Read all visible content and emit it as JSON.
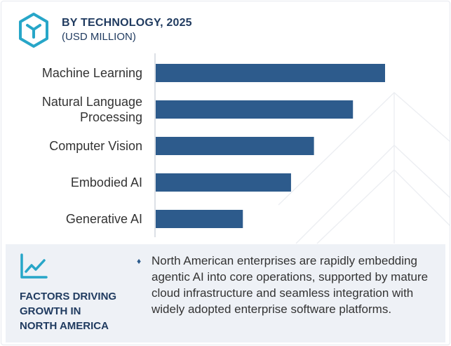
{
  "header": {
    "title": "BY TECHNOLOGY, 2025",
    "subtitle": "(USD MILLION)"
  },
  "colors": {
    "bar": "#2d5b8c",
    "heading": "#1f3a5f",
    "accent": "#27a6c8",
    "panel": "#eef1f6"
  },
  "icons": {
    "logo": "hexagon-cube-icon",
    "factors": "trend-chart-icon",
    "bullet": "diamond-bullet-icon"
  },
  "chart_data": {
    "type": "bar",
    "orientation": "horizontal",
    "categories": [
      "Machine Learning",
      "Natural Language Processing",
      "Computer Vision",
      "Embodied AI",
      "Generative AI"
    ],
    "category_lines": [
      [
        "Machine Learning"
      ],
      [
        "Natural Language",
        "Processing"
      ],
      [
        "Computer Vision"
      ],
      [
        "Embodied AI"
      ],
      [
        "Generative AI"
      ]
    ],
    "values": [
      100,
      86,
      69,
      59,
      38
    ],
    "value_scale": "relative (no values printed)",
    "title": "BY TECHNOLOGY, 2025",
    "xlabel": "",
    "ylabel": "",
    "xlim": [
      0,
      100
    ],
    "grid": false,
    "legend": "none"
  },
  "factors": {
    "heading_lines": [
      "FACTORS DRIVING",
      "GROWTH IN",
      "NORTH AMERICA"
    ],
    "bullet_glyph": "♦",
    "description": "North American enterprises are rapidly embedding agentic AI into core operations, supported by mature cloud infrastructure and seamless integration with widely adopted enterprise software platforms."
  }
}
